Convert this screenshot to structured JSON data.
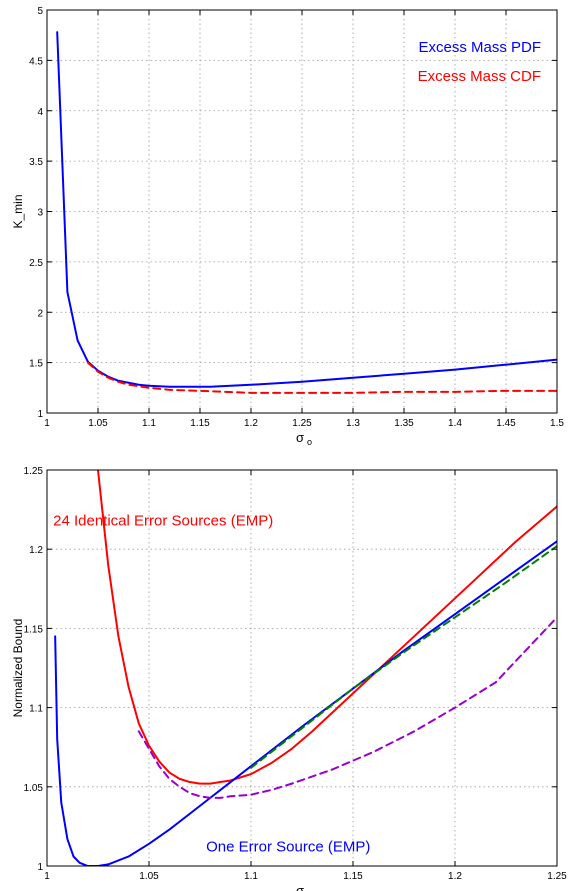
{
  "chart_data": [
    {
      "type": "line",
      "xlabel": "σ",
      "xlabel_sub": "o",
      "ylabel": "K_min",
      "xlim": [
        1,
        1.5
      ],
      "ylim": [
        1,
        5
      ],
      "xticks": [
        1,
        1.05,
        1.1,
        1.15,
        1.2,
        1.25,
        1.3,
        1.35,
        1.4,
        1.45,
        1.5
      ],
      "xtick_labels": [
        "1",
        "1.05",
        "1.1",
        "1.15",
        "1.2",
        "1.25",
        "1.3",
        "1.35",
        "1.4",
        "1.45",
        "1.5"
      ],
      "yticks": [
        1,
        1.5,
        2,
        2.5,
        3,
        3.5,
        4,
        4.5,
        5
      ],
      "ytick_labels": [
        "1",
        "1.5",
        "2",
        "2.5",
        "3",
        "3.5",
        "4",
        "4.5",
        "5"
      ],
      "grid": true,
      "series": [
        {
          "name": "Excess Mass PDF",
          "color": "#0000ff",
          "style": "solid",
          "x": [
            1.01,
            1.02,
            1.03,
            1.04,
            1.05,
            1.06,
            1.07,
            1.08,
            1.09,
            1.1,
            1.12,
            1.14,
            1.16,
            1.18,
            1.2,
            1.25,
            1.3,
            1.35,
            1.4,
            1.45,
            1.5
          ],
          "y": [
            4.78,
            2.2,
            1.72,
            1.51,
            1.42,
            1.36,
            1.32,
            1.3,
            1.28,
            1.27,
            1.26,
            1.26,
            1.26,
            1.27,
            1.28,
            1.31,
            1.35,
            1.39,
            1.43,
            1.48,
            1.53
          ]
        },
        {
          "name": "Excess Mass CDF",
          "color": "#ff0000",
          "style": "dashed",
          "x": [
            1.04,
            1.05,
            1.06,
            1.07,
            1.08,
            1.1,
            1.12,
            1.15,
            1.2,
            1.25,
            1.3,
            1.35,
            1.4,
            1.45,
            1.5
          ],
          "y": [
            1.5,
            1.41,
            1.35,
            1.31,
            1.28,
            1.25,
            1.23,
            1.22,
            1.2,
            1.2,
            1.2,
            1.21,
            1.21,
            1.22,
            1.22
          ]
        }
      ]
    },
    {
      "type": "line",
      "xlabel": "σ",
      "xlabel_sub": "o",
      "ylabel": "Normalized Bound",
      "xlim": [
        1,
        1.25
      ],
      "ylim": [
        1,
        1.25
      ],
      "xticks": [
        1,
        1.05,
        1.1,
        1.15,
        1.2,
        1.25
      ],
      "xtick_labels": [
        "1",
        "1.05",
        "1.1",
        "1.15",
        "1.2",
        "1.25"
      ],
      "yticks": [
        1,
        1.05,
        1.1,
        1.15,
        1.2,
        1.25
      ],
      "ytick_labels": [
        "1",
        "1.05",
        "1.1",
        "1.15",
        "1.2",
        "1.25"
      ],
      "grid": true,
      "annotations": [
        {
          "text": "24 Identical Error Sources (EMP)",
          "color": "#ff0000",
          "x": 1.003,
          "y": 1.215
        },
        {
          "text": "One Error Source (EMP)",
          "color": "#0000ff",
          "x": 1.078,
          "y": 1.009
        }
      ],
      "series": [
        {
          "color": "#ff0000",
          "style": "solid",
          "x": [
            1.025,
            1.03,
            1.035,
            1.04,
            1.045,
            1.05,
            1.055,
            1.06,
            1.065,
            1.07,
            1.075,
            1.08,
            1.085,
            1.09,
            1.1,
            1.11,
            1.12,
            1.13,
            1.14,
            1.15,
            1.16,
            1.17,
            1.18,
            1.19,
            1.2,
            1.21,
            1.22,
            1.23,
            1.24,
            1.25
          ],
          "y": [
            1.25,
            1.19,
            1.145,
            1.113,
            1.09,
            1.076,
            1.066,
            1.059,
            1.055,
            1.053,
            1.052,
            1.052,
            1.053,
            1.054,
            1.058,
            1.065,
            1.074,
            1.085,
            1.097,
            1.109,
            1.121,
            1.133,
            1.145,
            1.157,
            1.169,
            1.181,
            1.193,
            1.205,
            1.216,
            1.227
          ]
        },
        {
          "color": "#0000ff",
          "style": "solid",
          "x": [
            1.004,
            1.005,
            1.007,
            1.01,
            1.013,
            1.016,
            1.02,
            1.025,
            1.03,
            1.04,
            1.05,
            1.06,
            1.07,
            1.08,
            1.09,
            1.1,
            1.125,
            1.15,
            1.175,
            1.2,
            1.225,
            1.25
          ],
          "y": [
            1.145,
            1.08,
            1.04,
            1.017,
            1.006,
            1.002,
            1.0,
            1.0,
            1.001,
            1.006,
            1.014,
            1.023,
            1.033,
            1.043,
            1.053,
            1.063,
            1.088,
            1.112,
            1.136,
            1.159,
            1.182,
            1.205
          ]
        },
        {
          "color": "#008000",
          "style": "dashed",
          "x": [
            1.1,
            1.125,
            1.15,
            1.175,
            1.2,
            1.225,
            1.25
          ],
          "y": [
            1.062,
            1.087,
            1.112,
            1.135,
            1.157,
            1.179,
            1.202
          ]
        },
        {
          "color": "#9900cc",
          "style": "dashed",
          "x": [
            1.045,
            1.05,
            1.055,
            1.06,
            1.065,
            1.07,
            1.075,
            1.08,
            1.085,
            1.09,
            1.1,
            1.11,
            1.12,
            1.14,
            1.16,
            1.18,
            1.2,
            1.22,
            1.25
          ],
          "y": [
            1.085,
            1.074,
            1.063,
            1.055,
            1.05,
            1.046,
            1.044,
            1.043,
            1.043,
            1.044,
            1.045,
            1.048,
            1.052,
            1.061,
            1.072,
            1.085,
            1.1,
            1.116,
            1.157
          ]
        }
      ]
    }
  ]
}
